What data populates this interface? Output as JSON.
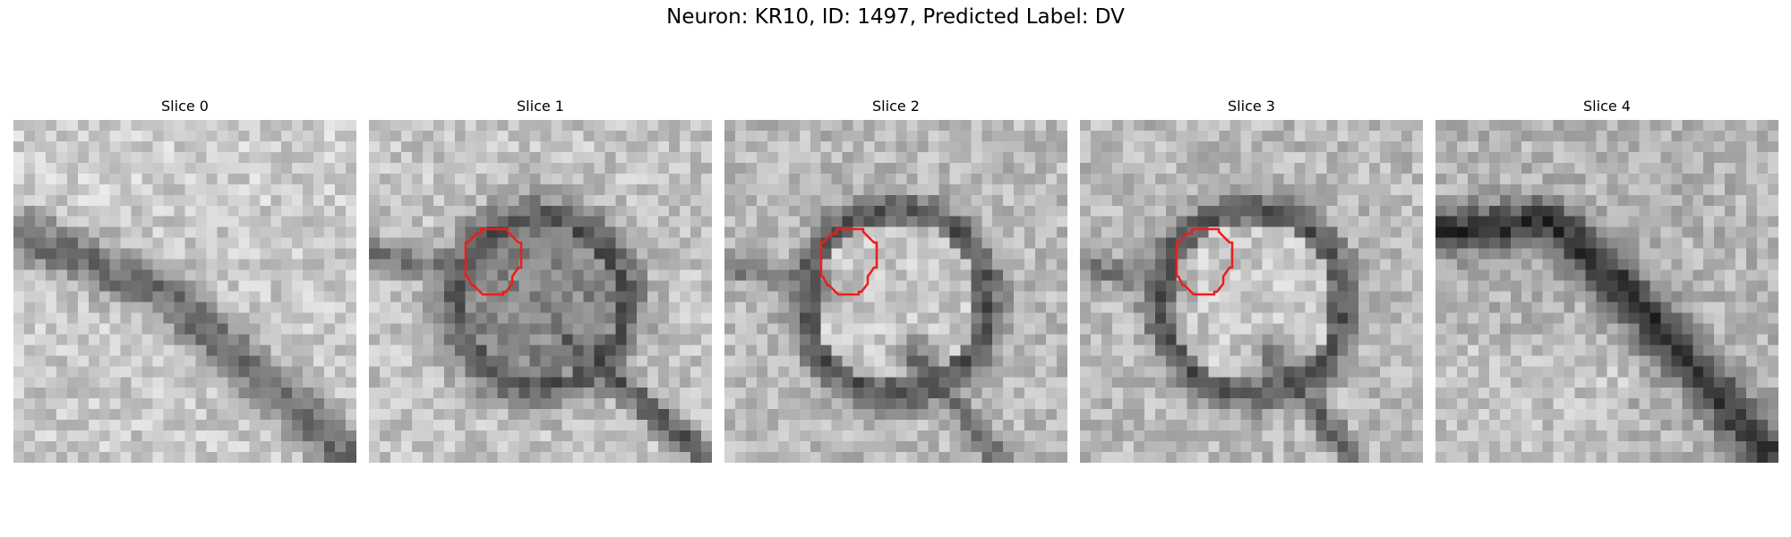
{
  "figure": {
    "title": "Neuron: KR10, ID: 1497, Predicted Label: DV"
  },
  "slices": [
    {
      "label": "Slice 0",
      "has_contour": false,
      "pattern": "membrane-diagonal-faint",
      "seed": 11
    },
    {
      "label": "Slice 1",
      "has_contour": true,
      "pattern": "ring-dark",
      "seed": 23
    },
    {
      "label": "Slice 2",
      "has_contour": true,
      "pattern": "ring-light-center",
      "seed": 37
    },
    {
      "label": "Slice 3",
      "has_contour": true,
      "pattern": "ring-light-center",
      "seed": 41
    },
    {
      "label": "Slice 4",
      "has_contour": false,
      "pattern": "membrane-dark-band",
      "seed": 53
    }
  ],
  "colors": {
    "contour": "#ee1c1c",
    "background": "#ffffff"
  },
  "image": {
    "grid_cells": 32,
    "colormap": "gray"
  }
}
